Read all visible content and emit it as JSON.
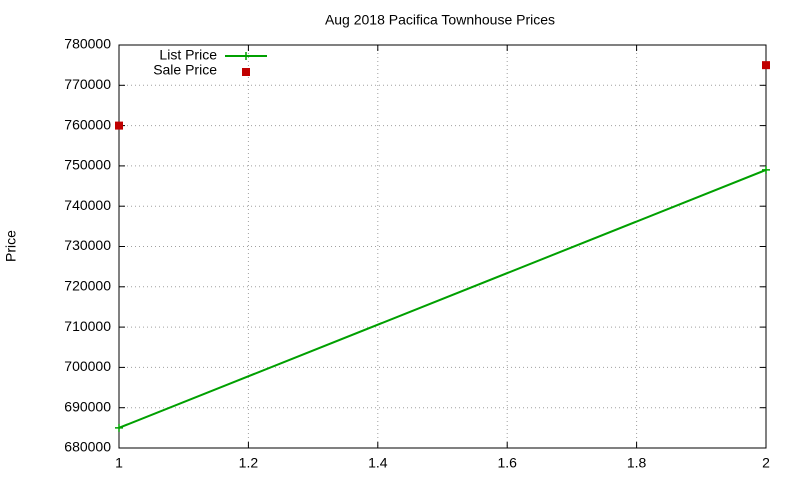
{
  "chart_data": {
    "type": "line",
    "title": "Aug 2018 Pacifica Townhouse Prices",
    "ylabel": "Price",
    "series": [
      {
        "name": "List Price",
        "color": "#00a000",
        "mode": "linespoints",
        "x": [
          1,
          2
        ],
        "values": [
          685000,
          749000
        ]
      },
      {
        "name": "Sale Price",
        "color": "#c00000",
        "mode": "points",
        "x": [
          1,
          2
        ],
        "values": [
          760000,
          775000
        ]
      }
    ],
    "xlim": [
      1,
      2
    ],
    "xticks": [
      1,
      1.2,
      1.4,
      1.6,
      1.8,
      2
    ],
    "ylim": [
      680000,
      780000
    ],
    "yticks": [
      680000,
      690000,
      700000,
      710000,
      720000,
      730000,
      740000,
      750000,
      760000,
      770000,
      780000
    ],
    "grid": true,
    "legend": "top-left"
  }
}
